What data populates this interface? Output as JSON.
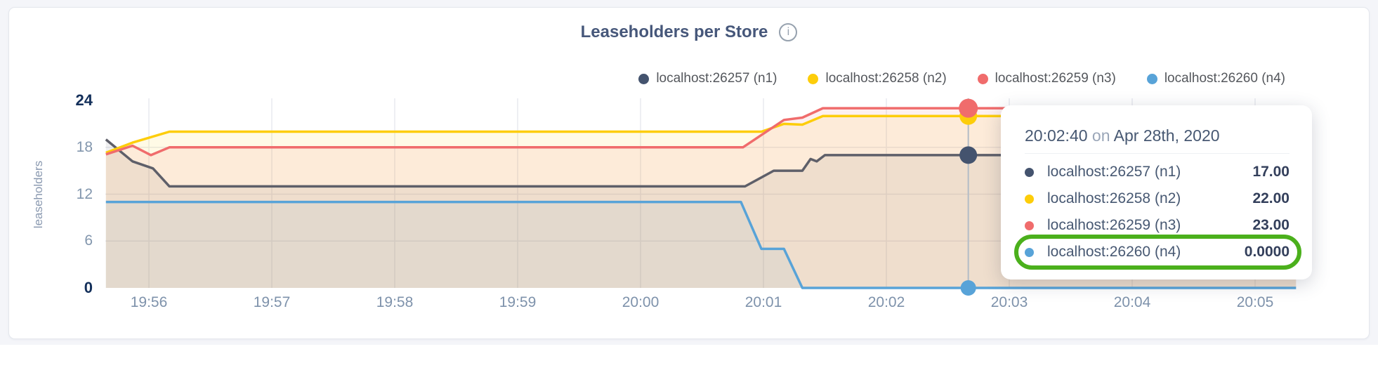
{
  "page": {
    "background_color": "#f4f5f9",
    "card_background": "#ffffff"
  },
  "header": {
    "title": "Leaseholders per Store",
    "info_icon_glyph": "i"
  },
  "chart_data": {
    "type": "area",
    "title": "Leaseholders per Store",
    "ylabel": "leaseholders",
    "ylim": [
      0,
      24
    ],
    "yticks": [
      0,
      6,
      12,
      18,
      24
    ],
    "ytick_emphasized": [
      0,
      24
    ],
    "xticks": [
      "19:56",
      "19:57",
      "19:58",
      "19:59",
      "20:00",
      "20:01",
      "20:02",
      "20:03",
      "20:04",
      "20:05"
    ],
    "x_range": [
      "19:55:39",
      "20:05:20"
    ],
    "grid": true,
    "legend_position": "top-right",
    "fill_opacity": 0.1,
    "series": [
      {
        "name": "localhost:26257 (n1)",
        "line_color": "#5e5f69",
        "marker_color": "#44536e",
        "points": [
          [
            "19:55:39",
            19
          ],
          [
            "19:55:52",
            16.2
          ],
          [
            "19:56:02",
            15.3
          ],
          [
            "19:56:10",
            13
          ],
          [
            "20:00:51",
            13
          ],
          [
            "20:01:05",
            15
          ],
          [
            "20:01:19",
            15
          ],
          [
            "20:01:23",
            16.5
          ],
          [
            "20:01:26",
            16.2
          ],
          [
            "20:01:30",
            17
          ],
          [
            "20:05:20",
            17
          ]
        ]
      },
      {
        "name": "localhost:26258 (n2)",
        "line_color": "#fdcd0a",
        "marker_color": "#fdcd0a",
        "points": [
          [
            "19:55:39",
            17.3
          ],
          [
            "19:55:52",
            18.6
          ],
          [
            "19:56:10",
            20
          ],
          [
            "20:00:59",
            20
          ],
          [
            "20:01:10",
            21
          ],
          [
            "20:01:19",
            20.9
          ],
          [
            "20:01:29",
            22
          ],
          [
            "20:05:20",
            22
          ]
        ]
      },
      {
        "name": "localhost:26259 (n3)",
        "line_color": "#f06c6c",
        "marker_color": "#f06c6c",
        "points": [
          [
            "19:55:39",
            17.1
          ],
          [
            "19:55:52",
            18.2
          ],
          [
            "19:56:01",
            17
          ],
          [
            "19:56:10",
            18
          ],
          [
            "20:00:50",
            18
          ],
          [
            "20:01:10",
            21.5
          ],
          [
            "20:01:19",
            21.8
          ],
          [
            "20:01:29",
            23
          ],
          [
            "20:05:20",
            23
          ]
        ]
      },
      {
        "name": "localhost:26260 (n4)",
        "line_color": "#58a3d8",
        "marker_color": "#58a3d8",
        "points": [
          [
            "19:55:39",
            11
          ],
          [
            "20:00:49",
            11
          ],
          [
            "20:00:59",
            5
          ],
          [
            "20:01:10",
            5
          ],
          [
            "20:01:19",
            0
          ],
          [
            "20:05:20",
            0
          ]
        ]
      }
    ],
    "hover": {
      "time": "20:02:40",
      "values": [
        17,
        22,
        23,
        0
      ],
      "line_color": "#b3bcc7"
    }
  },
  "tooltip": {
    "time": "20:02:40",
    "conjunction": "on",
    "date": "Apr 28th, 2020",
    "rows": [
      {
        "label": "localhost:26257 (n1)",
        "value": "17.00",
        "color": "#44536e",
        "highlighted": false
      },
      {
        "label": "localhost:26258 (n2)",
        "value": "22.00",
        "color": "#fdcd0a",
        "highlighted": false
      },
      {
        "label": "localhost:26259 (n3)",
        "value": "23.00",
        "color": "#f06c6c",
        "highlighted": false
      },
      {
        "label": "localhost:26260 (n4)",
        "value": "0.0000",
        "color": "#58a3d8",
        "highlighted": true
      }
    ],
    "highlight_color": "#4bb01c"
  }
}
